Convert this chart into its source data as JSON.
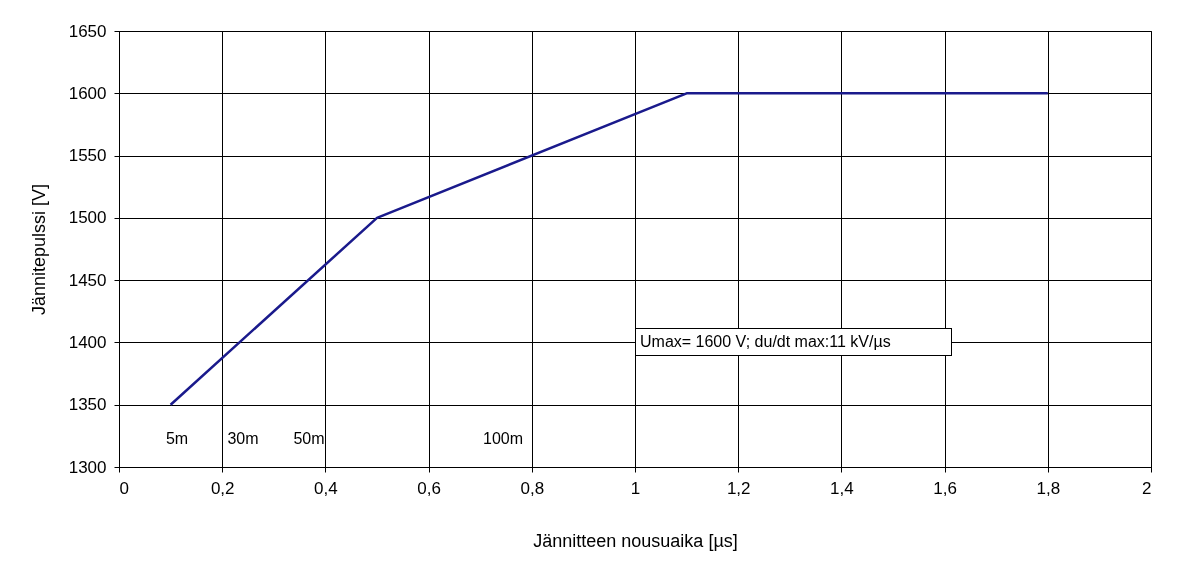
{
  "chart_data": {
    "type": "line",
    "xlabel": "Jännitteen nousuaika [µs]",
    "ylabel": "Jännitepulssi [V]",
    "x": [
      0.1,
      0.5,
      1.1,
      1.8
    ],
    "series": [
      {
        "color": "#1a1a8c",
        "values": [
          1350,
          1500,
          1600,
          1600
        ]
      }
    ],
    "xlim": [
      0,
      2
    ],
    "ylim": [
      1300,
      1650
    ],
    "xticks": [
      0,
      {
        "value": 0.2,
        "label": "0,2"
      },
      {
        "value": 0.4,
        "label": "0,4"
      },
      {
        "value": 0.6,
        "label": "0,6"
      },
      {
        "value": 0.8,
        "label": "0,8"
      },
      1,
      {
        "value": 1.2,
        "label": "1,2"
      },
      {
        "value": 1.4,
        "label": "1,4"
      },
      {
        "value": 1.6,
        "label": "1,6"
      },
      {
        "value": 1.8,
        "label": "1,8"
      },
      2
    ],
    "yticks": [
      1300,
      1350,
      1400,
      1450,
      1500,
      1550,
      1600,
      1650
    ],
    "grid": true,
    "legend": false,
    "marker": "none",
    "line_style": "solid",
    "annotations": [
      "5m",
      "30m",
      "50m",
      "100m",
      "Umax= 1600 V; du/dt max:11 kV/µs"
    ]
  }
}
